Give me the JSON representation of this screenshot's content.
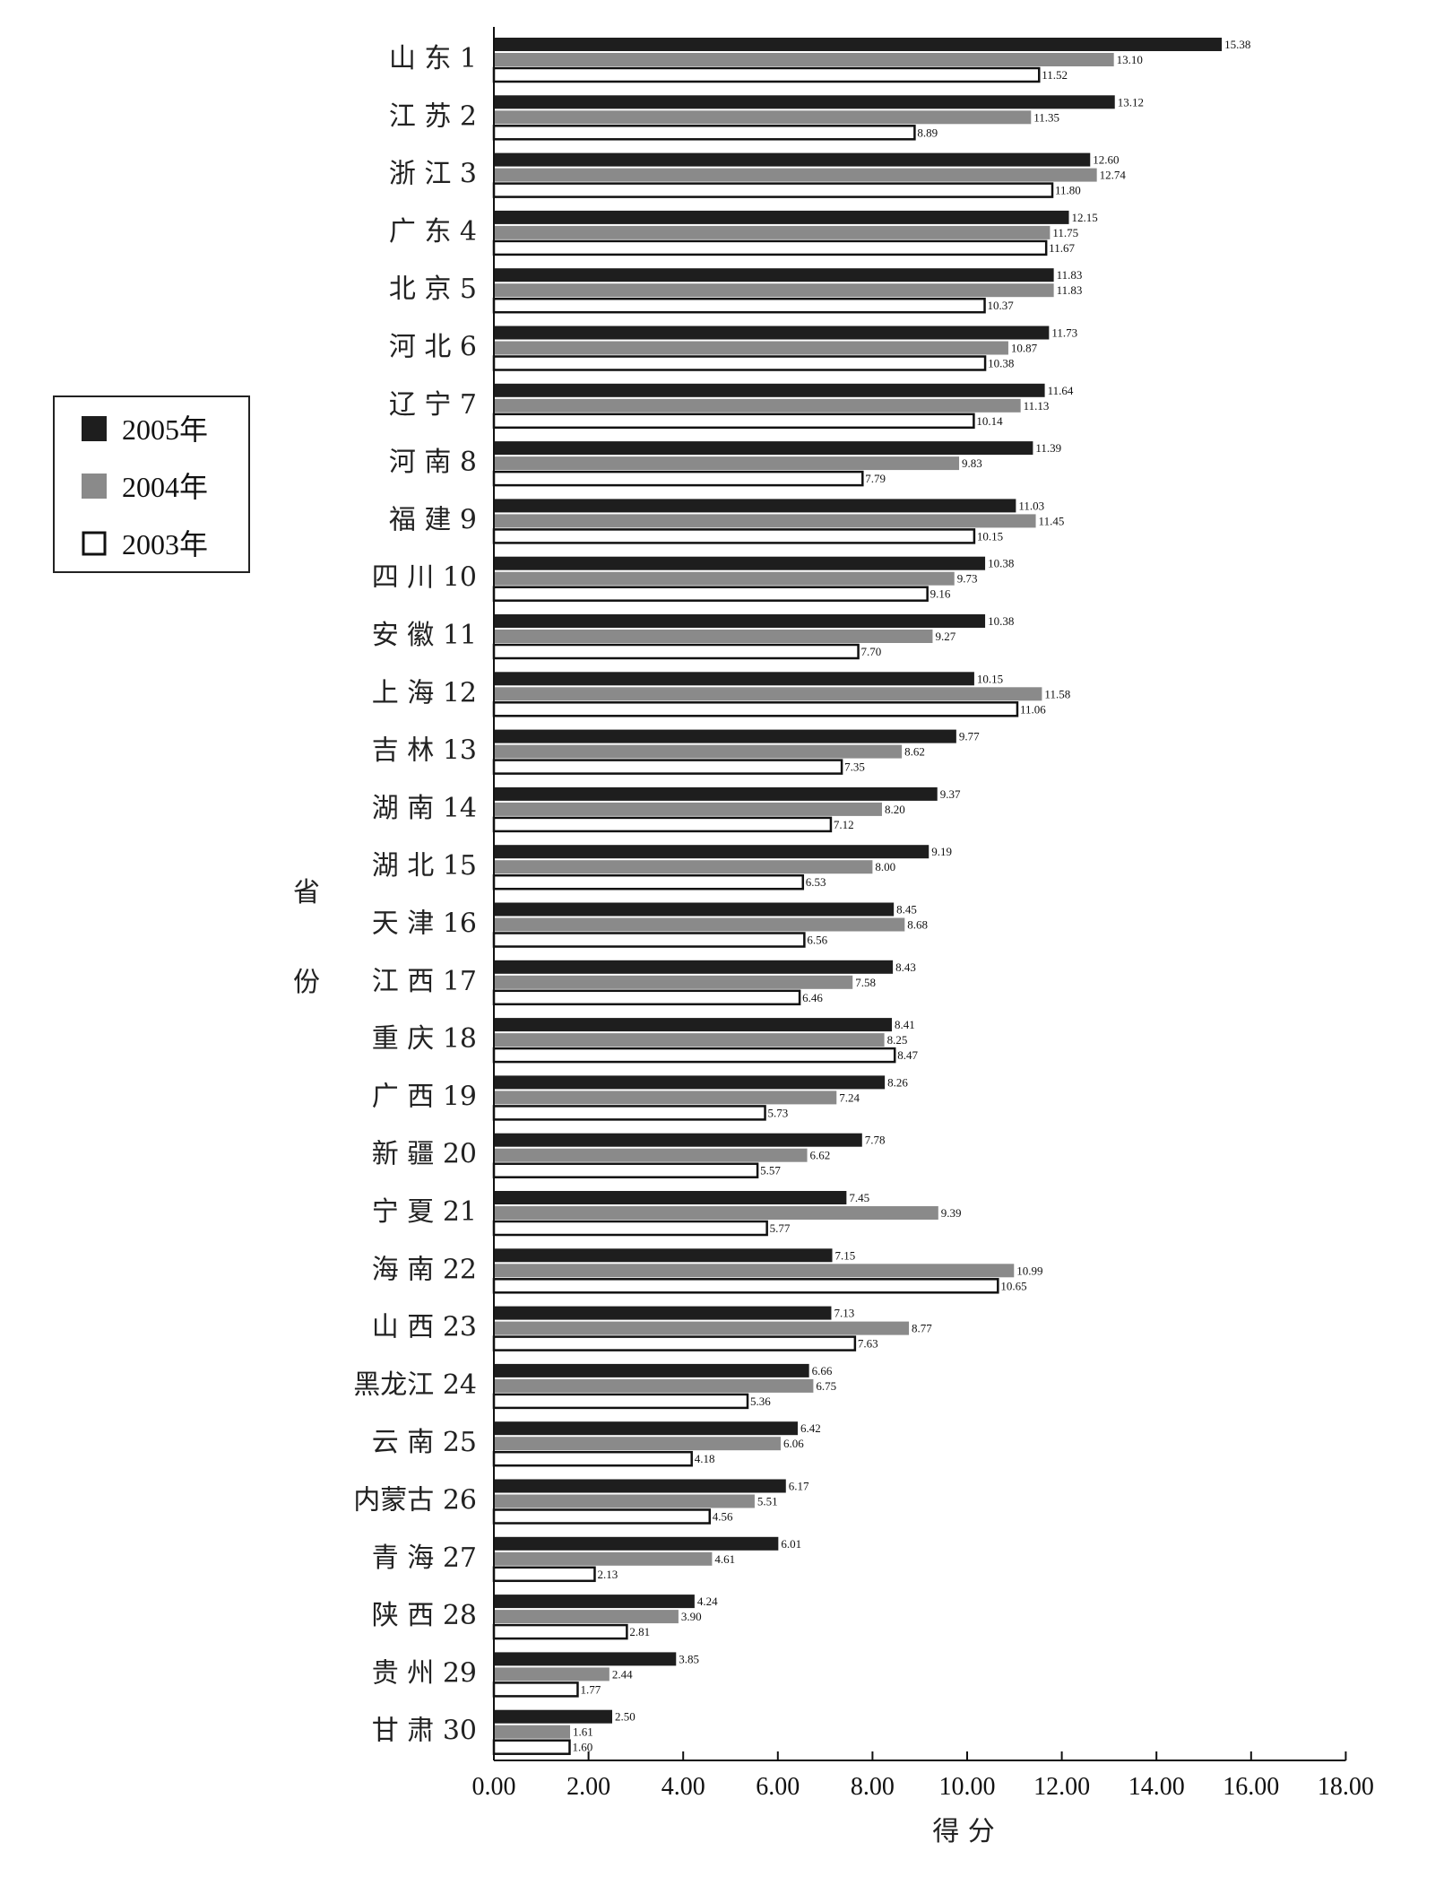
{
  "chart_data": {
    "type": "bar",
    "orientation": "horizontal",
    "categories": [
      "山 东 1",
      "江 苏 2",
      "浙 江 3",
      "广 东 4",
      "北 京 5",
      "河 北 6",
      "辽 宁 7",
      "河 南 8",
      "福 建 9",
      "四 川 10",
      "安 徽 11",
      "上 海 12",
      "吉 林 13",
      "湖 南 14",
      "湖 北 15",
      "天 津 16",
      "江 西 17",
      "重 庆 18",
      "广 西 19",
      "新 疆 20",
      "宁 夏 21",
      "海 南 22",
      "山 西 23",
      "黑龙江 24",
      "云 南 25",
      "内蒙古 26",
      "青 海 27",
      "陕 西 28",
      "贵 州 29",
      "甘 肃 30"
    ],
    "series": [
      {
        "name": "2005年",
        "color": "#1e1e1e",
        "values": [
          15.38,
          13.12,
          12.6,
          12.15,
          11.83,
          11.73,
          11.64,
          11.39,
          11.03,
          10.38,
          10.38,
          10.15,
          9.77,
          9.37,
          9.19,
          8.45,
          8.43,
          8.41,
          8.26,
          7.78,
          7.45,
          7.15,
          7.13,
          6.66,
          6.42,
          6.17,
          6.01,
          4.24,
          3.85,
          2.5
        ]
      },
      {
        "name": "2004年",
        "color": "#8a8a8a",
        "values": [
          13.1,
          11.35,
          12.74,
          11.75,
          11.83,
          10.87,
          11.13,
          9.83,
          11.45,
          9.73,
          9.27,
          11.58,
          8.62,
          8.2,
          8.0,
          8.68,
          7.58,
          8.25,
          7.24,
          6.62,
          9.39,
          10.99,
          8.77,
          6.75,
          6.06,
          5.51,
          4.61,
          3.9,
          2.44,
          1.61
        ]
      },
      {
        "name": "2003年",
        "color": "#ffffff",
        "values": [
          11.52,
          8.89,
          11.8,
          11.67,
          10.37,
          10.38,
          10.14,
          7.79,
          10.15,
          9.16,
          7.7,
          11.06,
          7.35,
          7.12,
          6.53,
          6.56,
          6.46,
          8.47,
          5.73,
          5.57,
          5.77,
          10.65,
          7.63,
          5.36,
          4.18,
          4.56,
          2.13,
          2.81,
          1.77,
          1.6
        ]
      }
    ],
    "value_labels": [
      [
        "15.38",
        "13.12",
        "12.60",
        "12.15",
        "11.83",
        "11.73",
        "11.64",
        "11.39",
        "11.03",
        "10.38",
        "10.38",
        "10.15",
        "9.77",
        "9.37",
        "9.19",
        "8.45",
        "8.43",
        "8.41",
        "8.26",
        "7.78",
        "7.45",
        "7.15",
        "7.13",
        "6.66",
        "6.42",
        "6.17",
        "6.01",
        "4.24",
        "3.85",
        "2.50"
      ],
      [
        "13.10",
        "11.35",
        "12.74",
        "11.75",
        "11.83",
        "10.87",
        "11.13",
        "9.83",
        "11.45",
        "9.73",
        "9.27",
        "11.58",
        "8.62",
        "8.20",
        "8.00",
        "8.68",
        "7.58",
        "8.25",
        "7.24",
        "6.62",
        "9.39",
        "10.99",
        "8.77",
        "6.75",
        "6.06",
        "5.51",
        "4.61",
        "3.90",
        "2.44",
        "1.61"
      ],
      [
        "11.52",
        "8.89",
        "11.80",
        "11.67",
        "10.37",
        "10.38",
        "10.14",
        "7.79",
        "10.15",
        "9.16",
        "7.70",
        "11.06",
        "7.35",
        "7.12",
        "6.53",
        "6.56",
        "6.46",
        "8.47",
        "5.73",
        "5.57",
        "5.77",
        "10.65",
        "7.63",
        "5.36",
        "4.18",
        "4.56",
        "2.13",
        "2.81",
        "1.77",
        "1.60"
      ]
    ],
    "xlabel": "得 分",
    "ylabel": [
      "省",
      "份"
    ],
    "xlim": [
      0,
      18
    ],
    "x_ticks": [
      "0.00",
      "2.00",
      "4.00",
      "6.00",
      "8.00",
      "10.00",
      "12.00",
      "14.00",
      "16.00",
      "18.00"
    ],
    "grid": false,
    "legend_position": "left"
  }
}
